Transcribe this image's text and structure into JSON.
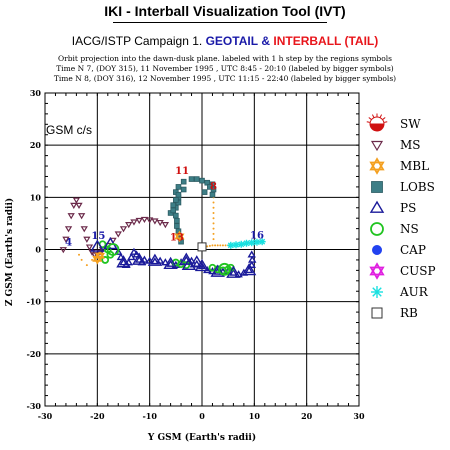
{
  "header": {
    "tool_title": "IKI - Interball Visualization Tool (IVT)",
    "campaign_prefix": "IACG/ISTP Campaign 1.",
    "geotail": "GEOTAIL",
    "amp": "&",
    "interball": "INTERBALL (TAIL)",
    "note1": "Orbit projection into the dawn-dusk plane. labeled with 1 h step by the regions symbols",
    "note2": "Time N 7, (DOY 315), 11 November 1995 , UTC 8:45 - 20:10 (labeled by bigger symbols)",
    "note3": "Time N 8, (DOY 316), 12 November 1995 , UTC 11:15 - 22:40 (labeled by bigger symbols)"
  },
  "colors": {
    "geotail": "#1a1aa8",
    "interball": "#e8151b",
    "ms": "#6b2a4a",
    "lobs": "#3d7e86",
    "ps": "#1a1a9a",
    "ns": "#21c421",
    "cap": "#2242f0",
    "cusp": "#e020e0",
    "aur": "#19e0e0",
    "label_red": "#d01010",
    "label_blue": "#1a1aa8",
    "orange": "#f4a020"
  },
  "chart_data": {
    "type": "scatter",
    "title": "GSM c/s",
    "xlabel": "Y GSM (Earth's radii)",
    "ylabel": "Z GSM (Earth's radii)",
    "xlim": [
      -30,
      30
    ],
    "ylim": [
      -30,
      30
    ],
    "xticks": [
      -30,
      -20,
      -10,
      0,
      10,
      20,
      30
    ],
    "yticks": [
      -30,
      -20,
      -10,
      0,
      10,
      20,
      30
    ],
    "grid": true,
    "legend_position": "right",
    "legend": [
      {
        "symbol": "SW",
        "label": "SW"
      },
      {
        "symbol": "MS",
        "label": "MS"
      },
      {
        "symbol": "MBL",
        "label": "MBL"
      },
      {
        "symbol": "LOBS",
        "label": "LOBS"
      },
      {
        "symbol": "PS",
        "label": "PS"
      },
      {
        "symbol": "NS",
        "label": "NS"
      },
      {
        "symbol": "CAP",
        "label": "CAP"
      },
      {
        "symbol": "CUSP",
        "label": "CUSP"
      },
      {
        "symbol": "AUR",
        "label": "AUR"
      },
      {
        "symbol": "RB",
        "label": "RB"
      }
    ],
    "series": [
      {
        "region": "MS",
        "points": [
          [
            -26.5,
            0
          ],
          [
            -26,
            2
          ],
          [
            -25.5,
            4
          ],
          [
            -25,
            6.5
          ],
          [
            -24.5,
            8.5
          ],
          [
            -24,
            9.5
          ],
          [
            -23.5,
            8.5
          ],
          [
            -23,
            6.5
          ],
          [
            -22.5,
            4
          ],
          [
            -22,
            2
          ],
          [
            -21.5,
            0.5
          ],
          [
            -21,
            -0.5
          ],
          [
            -20.5,
            -1
          ],
          [
            -20,
            -1
          ],
          [
            -19.5,
            -0.5
          ],
          [
            -19,
            0
          ],
          [
            -18,
            0.8
          ],
          [
            -17,
            1.8
          ],
          [
            -16,
            3
          ],
          [
            -15,
            4
          ],
          [
            -14,
            4.8
          ],
          [
            -13,
            5.3
          ],
          [
            -12,
            5.6
          ],
          [
            -11,
            5.8
          ],
          [
            -10,
            5.7
          ],
          [
            -9,
            5.5
          ],
          [
            -8,
            5.2
          ],
          [
            -7,
            4.8
          ]
        ]
      },
      {
        "region": "LOBS",
        "points": [
          [
            -6,
            7
          ],
          [
            -5,
            8
          ],
          [
            -4.5,
            9
          ],
          [
            -4.5,
            10
          ],
          [
            -5,
            11
          ],
          [
            -4.5,
            12
          ],
          [
            -3.5,
            13
          ],
          [
            -2,
            13.5
          ],
          [
            -1,
            13.5
          ],
          [
            0,
            13.2
          ],
          [
            1,
            12.8
          ],
          [
            2,
            12.5
          ],
          [
            2.2,
            11.5
          ],
          [
            2,
            10.5
          ],
          [
            1.5,
            12
          ],
          [
            0.5,
            11
          ],
          [
            -3.5,
            11.5
          ],
          [
            -4.5,
            10.5
          ],
          [
            -5,
            9.5
          ],
          [
            -5.5,
            8.5
          ],
          [
            -5.5,
            7.5
          ],
          [
            -5,
            6.5
          ],
          [
            -4.8,
            5.5
          ],
          [
            -4.8,
            4.5
          ],
          [
            -4.5,
            3.5
          ],
          [
            -4.2,
            2.5
          ],
          [
            -4,
            1.5
          ]
        ]
      },
      {
        "region": "PS",
        "points": [
          [
            -16,
            -0.5
          ],
          [
            -15.5,
            -1.5
          ],
          [
            -15,
            -2.5
          ],
          [
            -14.5,
            -3
          ],
          [
            -14,
            -2.5
          ],
          [
            -13.5,
            -1.5
          ],
          [
            -13,
            -0.5
          ],
          [
            -12.5,
            -1
          ],
          [
            -12,
            -2
          ],
          [
            -11.5,
            -2.5
          ],
          [
            -11,
            -2
          ],
          [
            -10,
            -2.2
          ],
          [
            -9,
            -2.3
          ],
          [
            -8,
            -2.2
          ],
          [
            -7,
            -2.5
          ],
          [
            -6,
            -2.8
          ],
          [
            -5,
            -3
          ],
          [
            -4,
            -2.5
          ],
          [
            -3,
            -2
          ],
          [
            -2,
            -2.2
          ],
          [
            -1,
            -2.8
          ],
          [
            0,
            -3.2
          ],
          [
            1,
            -4
          ],
          [
            2,
            -4.2
          ],
          [
            3,
            -4.3
          ],
          [
            4,
            -4.3
          ],
          [
            5,
            -4.2
          ],
          [
            6,
            -4.5
          ],
          [
            7,
            -4.8
          ],
          [
            8,
            -4.5
          ],
          [
            9,
            -4
          ],
          [
            9.5,
            -3
          ],
          [
            9.6,
            -2
          ],
          [
            9.5,
            -1
          ]
        ]
      },
      {
        "region": "PS_big",
        "points": [
          [
            -20,
            0.5
          ],
          [
            -17.5,
            1
          ],
          [
            -15,
            -2.5
          ],
          [
            -12,
            -2
          ],
          [
            -9,
            -2.2
          ],
          [
            -6,
            -2.8
          ],
          [
            -3,
            -2
          ],
          [
            0,
            -3.2
          ],
          [
            3,
            -4.3
          ],
          [
            6,
            -4.5
          ],
          [
            9,
            -4
          ],
          [
            -1,
            -2.5
          ],
          [
            -2.5,
            -3
          ]
        ]
      },
      {
        "region": "NS",
        "points": [
          [
            -19,
            1
          ],
          [
            -18,
            0
          ],
          [
            -17.5,
            -1
          ],
          [
            -18.5,
            -2
          ],
          [
            -5,
            -2.5
          ],
          [
            -4,
            -2.8
          ],
          [
            -3,
            -3
          ],
          [
            2,
            -3.5
          ],
          [
            3,
            -3.8
          ],
          [
            4,
            -4
          ],
          [
            5,
            -3.8
          ],
          [
            5.5,
            -3.5
          ]
        ]
      },
      {
        "region": "NS_big",
        "points": [
          [
            -17,
            0
          ],
          [
            4.3,
            -3.8
          ]
        ]
      },
      {
        "region": "MBL",
        "points": [
          [
            -20,
            -1.8
          ],
          [
            -19.5,
            -1.2
          ],
          [
            -4.3,
            2.5
          ]
        ]
      },
      {
        "region": "AUR",
        "points": [
          [
            5.5,
            0.8
          ],
          [
            6.5,
            0.9
          ],
          [
            7.5,
            1
          ],
          [
            8.5,
            1.2
          ],
          [
            9.5,
            1.3
          ],
          [
            10.5,
            1.4
          ],
          [
            11.5,
            1.5
          ]
        ]
      },
      {
        "region": "RB",
        "points": [
          [
            0,
            0.5
          ]
        ]
      },
      {
        "region": "path_dots",
        "points": [
          [
            0.5,
            0.5
          ],
          [
            1,
            0.6
          ],
          [
            1.5,
            0.7
          ],
          [
            2,
            0.8
          ],
          [
            2.5,
            0.8
          ],
          [
            3,
            0.8
          ],
          [
            3.5,
            0.8
          ],
          [
            4,
            0.8
          ],
          [
            4.5,
            0.8
          ],
          [
            5,
            0.8
          ],
          [
            2.2,
            2
          ],
          [
            2.2,
            3
          ],
          [
            2.2,
            4
          ],
          [
            2.2,
            5
          ],
          [
            2.2,
            6
          ],
          [
            2.2,
            7
          ],
          [
            2.2,
            8
          ],
          [
            2.2,
            9
          ],
          [
            2.2,
            10
          ],
          [
            -20,
            -1
          ],
          [
            -21,
            -2
          ],
          [
            -22,
            -3
          ],
          [
            -23,
            -2
          ],
          [
            -23.5,
            -1
          ]
        ]
      }
    ],
    "annotations": [
      {
        "text": "4",
        "x": -25.5,
        "y": 0.8,
        "color": "label_blue"
      },
      {
        "text": "15",
        "x": -19.8,
        "y": 2,
        "color": "label_blue"
      },
      {
        "text": "11",
        "x": -3.8,
        "y": 14.5,
        "color": "label_red"
      },
      {
        "text": "8",
        "x": 2.2,
        "y": 11.5,
        "color": "label_red"
      },
      {
        "text": "13",
        "x": -4.8,
        "y": 1.7,
        "color": "label_red"
      },
      {
        "text": "16",
        "x": 10.5,
        "y": 2.1,
        "color": "label_blue"
      }
    ]
  }
}
